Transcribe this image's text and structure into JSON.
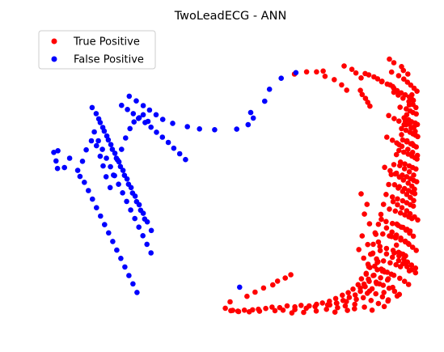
{
  "chart_data": {
    "type": "scatter",
    "title": "TwoLeadECG - ANN",
    "xlabel": "",
    "ylabel": "",
    "axes_visible": false,
    "grid": false,
    "xlim": [
      0,
      100
    ],
    "ylim": [
      0,
      100
    ],
    "legend_position": "top-left",
    "series": [
      {
        "name": "True Positive",
        "color": "#ff0000",
        "x": [
          66.4,
          69.7,
          72.4,
          74.2,
          74.7,
          77.2,
          79.2,
          80.6,
          79.9,
          82.0,
          83.1,
          84.5,
          84.3,
          84.8,
          85.7,
          86.3,
          86.9,
          85.6,
          86.6,
          88.0,
          89.0,
          90.2,
          91.6,
          93.1,
          90.1,
          92.4,
          93.4,
          94.3,
          95.4,
          96.5,
          97.6,
          98.2,
          98.7,
          95.1,
          96.8,
          97.8,
          98.6,
          99.5,
          96.2,
          97.4,
          98.2,
          99.2,
          99.8,
          95.5,
          96.7,
          97.8,
          98.6,
          99.3,
          99.9,
          95.8,
          96.9,
          98.0,
          98.8,
          99.5,
          94.8,
          96.1,
          97.3,
          98.3,
          99.1,
          99.7,
          95.2,
          96.4,
          97.6,
          98.5,
          99.4,
          94.1,
          95.7,
          96.9,
          97.9,
          98.8,
          99.6,
          93.6,
          94.9,
          96.3,
          97.4,
          98.4,
          99.1,
          93.0,
          94.4,
          95.8,
          96.9,
          97.9,
          98.7,
          92.2,
          93.8,
          95.2,
          96.4,
          97.5,
          98.3,
          91.3,
          93.0,
          94.6,
          95.9,
          97.0,
          97.8,
          90.4,
          92.2,
          93.9,
          95.3,
          96.5,
          97.3,
          89.6,
          91.4,
          93.2,
          94.7,
          95.9,
          96.6,
          88.7,
          90.6,
          92.4,
          94.0,
          95.2,
          86.9,
          88.9,
          90.9,
          92.7,
          85.9,
          87.8,
          89.8,
          91.7,
          84.6,
          86.7,
          88.7,
          83.7,
          85.6,
          87.5,
          82.3,
          84.3,
          86.2,
          81.0,
          82.9,
          79.4,
          81.3,
          83.2,
          77.6,
          79.6,
          75.9,
          77.8,
          74.0,
          76.0,
          72.4,
          70.4,
          68.2,
          66.5,
          64.4,
          62.4,
          60.3,
          58.6,
          56.6,
          55.0,
          52.8,
          51.0,
          49.6,
          49.1,
          47.6,
          48.9,
          53.5,
          55.7,
          58.0,
          60.5,
          61.8,
          63.9,
          65.4,
          92.2,
          93.4,
          95.5,
          96.0,
          97.2,
          92.8,
          94.7,
          96.1,
          97.1,
          98.0,
          98.9,
          99.7,
          93.4,
          94.6,
          95.9,
          97.5,
          98.6,
          99.4,
          96.5,
          97.7,
          98.9,
          92.0,
          93.5,
          94.8,
          96.8,
          98.1,
          99.2,
          97.0,
          98.4,
          91.5,
          93.0,
          94.2,
          95.6,
          97.2,
          98.5,
          99.8,
          95.0,
          96.3,
          97.6,
          98.8,
          90.9,
          92.4,
          93.8,
          94.9,
          96.0,
          97.3,
          98.3,
          99.0,
          94.6,
          95.8,
          96.9,
          97.9,
          98.8,
          93.2,
          94.4,
          95.6,
          96.9,
          97.8,
          99.0,
          99.9,
          94.2,
          95.4,
          96.7,
          97.7,
          98.7,
          92.9,
          94.1,
          95.3,
          96.5,
          97.5,
          98.5,
          99.5,
          93.5,
          94.8,
          96.1,
          97.1,
          98.2,
          99.3,
          89.7,
          91.4,
          93.0,
          94.7,
          95.9,
          97.0,
          98.2,
          99.3,
          88.2,
          90.0,
          91.6,
          93.4,
          95.0,
          96.3,
          97.4,
          86.5,
          88.6,
          90.5,
          92.1,
          93.6,
          94.9,
          84.3,
          86.8,
          88.5,
          90.3,
          91.9,
          85.1,
          87.2,
          89.2,
          90.8,
          80.5,
          82.8,
          85.4,
          87.5,
          77.9,
          80.2,
          82.7,
          75.4,
          78.1,
          80.8,
          72.0,
          75.1,
          77.4,
          69.6,
          72.3,
          66.5,
          68.9,
          63.3,
          65.7,
          61.1,
          56.9,
          54.1,
          51.2,
          84.5,
          86.1,
          85.4,
          86.8,
          88.3,
          89.2,
          87.6,
          88.9,
          90.3,
          83.9,
          85.2,
          86.6,
          88.0,
          89.5,
          90.7,
          91.8,
          84.8,
          86.3,
          87.7,
          89.1,
          90.5,
          91.9,
          93.1,
          94.3,
          90.0,
          91.4,
          92.8,
          94.1,
          95.3,
          96.4,
          97.6,
          85.3,
          85.9,
          86.4,
          87.1,
          87.8,
          88.5,
          89.2,
          89.9,
          90.6,
          91.3,
          92.0,
          92.7,
          93.4,
          94.1,
          94.8,
          95.5,
          96.2,
          96.9,
          97.6,
          98.3
        ],
        "y": [
          86.1,
          86.9,
          86.9,
          87.2,
          85.3,
          84.1,
          82.2,
          80.3,
          89.0,
          87.8,
          86.5,
          84.7,
          80.2,
          78.7,
          77.3,
          75.9,
          74.5,
          86.3,
          85.8,
          85.1,
          84.4,
          83.5,
          82.5,
          81.6,
          83.3,
          82.2,
          81.0,
          80.1,
          79.3,
          78.6,
          77.8,
          77.2,
          76.6,
          74.1,
          73.5,
          72.8,
          72.2,
          71.7,
          70.3,
          69.6,
          68.9,
          68.4,
          67.9,
          66.4,
          65.8,
          65.1,
          64.5,
          64.0,
          63.5,
          62.3,
          61.6,
          60.9,
          60.3,
          59.8,
          58.5,
          57.9,
          57.2,
          56.5,
          55.9,
          55.4,
          54.3,
          53.6,
          52.9,
          52.3,
          51.8,
          50.3,
          49.6,
          49.0,
          48.3,
          47.7,
          47.2,
          46.1,
          45.4,
          44.7,
          44.0,
          43.4,
          42.9,
          41.7,
          41.0,
          40.3,
          39.6,
          38.9,
          38.4,
          37.3,
          36.6,
          35.9,
          35.2,
          34.5,
          33.9,
          32.8,
          32.1,
          31.4,
          30.7,
          30.0,
          29.4,
          28.3,
          27.6,
          26.9,
          26.2,
          25.5,
          24.9,
          23.8,
          23.1,
          22.4,
          21.7,
          21.0,
          20.4,
          19.3,
          18.6,
          17.9,
          17.2,
          16.5,
          16.2,
          15.4,
          14.6,
          13.8,
          14.1,
          13.3,
          12.5,
          11.7,
          12.1,
          11.2,
          10.4,
          10.0,
          9.3,
          8.5,
          8.4,
          7.6,
          6.9,
          7.1,
          6.3,
          6.2,
          5.4,
          4.7,
          5.0,
          4.3,
          4.0,
          3.3,
          3.4,
          2.7,
          2.9,
          2.3,
          2.5,
          2.0,
          2.3,
          1.7,
          1.9,
          1.4,
          1.1,
          0.9,
          0.8,
          0.4,
          0.7,
          0.6,
          1.5,
          3.8,
          5.8,
          7.3,
          8.8,
          9.9,
          11.3,
          12.4,
          13.6,
          91.5,
          90.2,
          88.8,
          87.4,
          86.1,
          86.8,
          85.5,
          84.3,
          83.2,
          82.1,
          81.0,
          79.9,
          79.5,
          78.5,
          77.4,
          76.2,
          75.1,
          74.0,
          69.0,
          68.0,
          67.0,
          71.1,
          70.0,
          69.1,
          67.8,
          66.6,
          65.4,
          62.0,
          61.0,
          63.3,
          62.2,
          61.2,
          60.0,
          58.9,
          57.8,
          56.7,
          53.0,
          51.9,
          50.8,
          49.6,
          52.4,
          51.2,
          50.0,
          48.9,
          47.8,
          46.7,
          45.6,
          44.5,
          44.9,
          43.7,
          42.6,
          41.5,
          40.4,
          40.0,
          38.9,
          37.8,
          36.7,
          35.6,
          34.5,
          33.4,
          31.9,
          30.8,
          29.7,
          28.6,
          27.5,
          29.0,
          27.9,
          26.8,
          25.7,
          24.6,
          23.5,
          22.4,
          21.5,
          20.4,
          19.3,
          18.2,
          17.1,
          16.0,
          22.3,
          21.1,
          19.9,
          18.7,
          17.6,
          16.5,
          15.4,
          14.3,
          16.7,
          15.6,
          14.5,
          13.4,
          12.3,
          11.2,
          10.1,
          12.0,
          10.9,
          9.8,
          8.7,
          7.6,
          6.5,
          8.8,
          7.7,
          6.7,
          5.6,
          4.5,
          5.3,
          4.3,
          3.2,
          2.1,
          3.9,
          2.9,
          1.9,
          0.8,
          3.3,
          2.3,
          1.3,
          2.7,
          1.7,
          0.7,
          2.1,
          1.1,
          0.1,
          1.5,
          0.5,
          1.0,
          0.0,
          0.8,
          -0.2,
          0.6,
          0.4,
          0.2,
          0.3,
          42.8,
          39.0,
          35.5,
          32.0,
          28.7,
          25.4,
          21.2,
          18.0,
          14.9,
          22.7,
          19.6,
          16.5,
          13.4,
          10.3,
          7.2,
          4.1,
          27.6,
          24.5,
          21.4,
          18.3,
          15.2,
          12.1,
          9.0,
          5.9,
          33.6,
          30.5,
          27.4,
          24.3,
          21.2,
          18.1,
          15.0,
          10.2,
          13.8,
          17.4,
          21.0,
          24.6,
          28.2,
          31.8,
          35.4,
          39.0,
          42.6,
          46.2,
          49.8,
          53.4,
          57.0,
          60.6,
          64.2,
          67.8,
          71.4,
          75.0,
          78.6
        ]
      },
      {
        "name": "False Positive",
        "color": "#0000ff",
        "x": [
          1.0,
          1.6,
          3.9,
          5.3,
          2.1,
          2.0,
          7.5,
          8.1,
          8.8,
          9.8,
          11.2,
          12.6,
          13.6,
          14.4,
          15.2,
          16.3,
          17.2,
          18.3,
          19.4,
          20.5,
          21.7,
          22.8,
          24.0,
          25.3,
          26.6,
          11.4,
          12.5,
          13.6,
          14.7,
          15.8,
          16.9,
          18.0,
          19.1,
          20.2,
          21.3,
          22.4,
          23.5,
          24.6,
          25.7,
          12.0,
          13.1,
          14.2,
          15.3,
          16.4,
          17.5,
          18.6,
          19.7,
          20.8,
          21.9,
          23.0,
          24.1,
          25.2,
          26.3,
          27.4,
          9.3,
          10.4,
          11.5,
          12.6,
          13.7,
          14.8,
          15.9,
          17.0,
          18.1,
          19.2,
          20.3,
          21.4,
          22.5,
          23.6,
          13.2,
          14.3,
          15.4,
          16.5,
          17.6,
          18.7,
          19.8,
          20.9,
          22.0,
          23.1,
          24.2,
          25.3,
          26.4,
          27.5,
          19.4,
          21.0,
          22.6,
          24.2,
          25.8,
          27.4,
          28.9,
          30.5,
          32.1,
          33.6,
          35.2,
          36.8,
          21.5,
          23.4,
          25.3,
          27.0,
          28.8,
          30.6,
          33.3,
          37.3,
          40.6,
          44.7,
          50.7,
          53.8,
          55.2,
          54.5,
          58.3,
          59.6,
          62.8,
          66.8,
          51.5
        ],
        "y": [
          57.8,
          54.7,
          52.3,
          55.7,
          58.4,
          52.0,
          51.3,
          49.1,
          54.6,
          58.7,
          62.0,
          60.2,
          56.4,
          52.9,
          49.0,
          45.1,
          49.6,
          55.1,
          58.9,
          63.0,
          66.4,
          68.8,
          70.1,
          71.4,
          69.0,
          74.0,
          71.8,
          68.6,
          65.5,
          62.3,
          58.9,
          55.7,
          52.7,
          49.5,
          46.3,
          43.1,
          40.0,
          36.9,
          33.7,
          65.2,
          62.0,
          58.9,
          55.7,
          52.6,
          49.4,
          46.3,
          43.2,
          40.1,
          37.0,
          33.9,
          30.8,
          27.7,
          24.6,
          21.5,
          47.0,
          44.0,
          40.9,
          37.8,
          34.8,
          31.7,
          28.7,
          25.6,
          22.5,
          19.5,
          16.4,
          13.3,
          10.3,
          7.2,
          69.9,
          66.8,
          63.7,
          60.6,
          57.5,
          54.4,
          51.3,
          48.2,
          45.1,
          42.0,
          38.9,
          35.8,
          32.7,
          29.6,
          74.8,
          73.3,
          71.8,
          70.3,
          68.6,
          66.9,
          65.1,
          63.3,
          61.4,
          59.3,
          57.3,
          55.2,
          78.1,
          76.4,
          74.7,
          73.1,
          71.4,
          69.7,
          68.3,
          67.1,
          66.3,
          66.0,
          66.2,
          67.8,
          70.2,
          72.2,
          76.3,
          80.6,
          84.6,
          86.6,
          9.1
        ]
      }
    ]
  }
}
